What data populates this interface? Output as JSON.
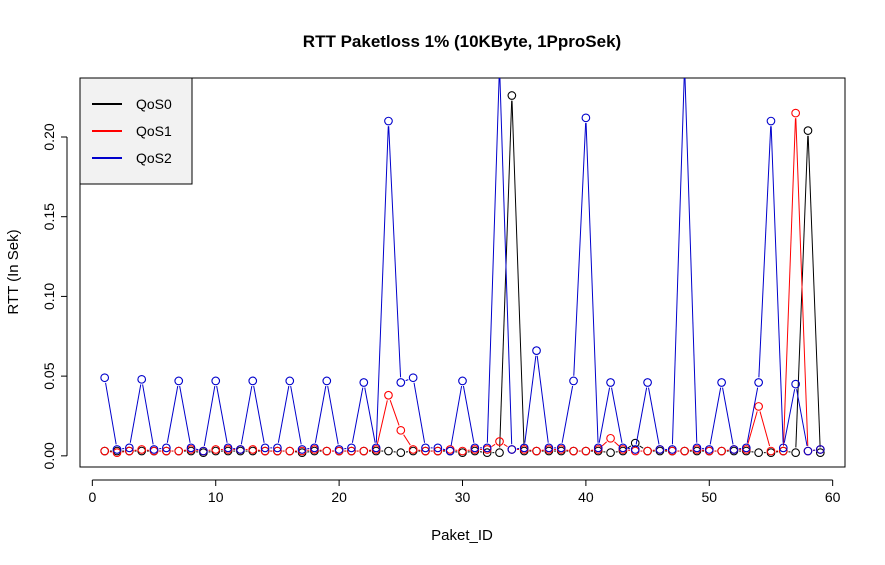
{
  "chart_data": {
    "type": "line",
    "title": "RTT Paketloss 1% (10KByte, 1PproSek)",
    "xlabel": "Paket_ID",
    "ylabel": "RTT (In Sek)",
    "xlim": [
      -1,
      61
    ],
    "ylim": [
      -0.007,
      0.237
    ],
    "x_ticks": [
      0,
      10,
      20,
      30,
      40,
      50,
      60
    ],
    "y_ticks": [
      0.0,
      0.05,
      0.1,
      0.15,
      0.2
    ],
    "y_tick_labels": [
      "0.00",
      "0.05",
      "0.10",
      "0.15",
      "0.20"
    ],
    "legend_position": "top-left",
    "grid": false,
    "series": [
      {
        "name": "QoS0",
        "color": "#000000",
        "x": [
          1,
          2,
          3,
          4,
          5,
          6,
          7,
          8,
          9,
          10,
          11,
          12,
          13,
          14,
          15,
          16,
          17,
          18,
          19,
          20,
          21,
          22,
          23,
          24,
          25,
          26,
          27,
          28,
          29,
          30,
          31,
          32,
          33,
          34,
          35,
          36,
          37,
          38,
          39,
          40,
          41,
          42,
          43,
          44,
          45,
          46,
          47,
          48,
          49,
          50,
          51,
          52,
          53,
          54,
          55,
          56,
          57,
          58,
          59
        ],
        "values": [
          0.003,
          0.003,
          0.003,
          0.003,
          0.003,
          0.003,
          0.003,
          0.003,
          0.002,
          0.003,
          0.003,
          0.003,
          0.003,
          0.003,
          0.003,
          0.003,
          0.002,
          0.003,
          0.003,
          0.003,
          0.003,
          0.003,
          0.003,
          0.003,
          0.002,
          0.003,
          0.003,
          0.003,
          0.003,
          0.002,
          0.003,
          0.002,
          0.002,
          0.226,
          0.003,
          0.003,
          0.003,
          0.003,
          0.003,
          0.003,
          0.003,
          0.002,
          0.003,
          0.008,
          0.003,
          0.003,
          0.003,
          0.003,
          0.003,
          0.003,
          0.003,
          0.003,
          0.003,
          0.002,
          0.002,
          0.003,
          0.002,
          0.204,
          0.002
        ]
      },
      {
        "name": "QoS1",
        "color": "#ff0000",
        "x": [
          1,
          2,
          3,
          4,
          5,
          6,
          7,
          8,
          9,
          10,
          11,
          12,
          13,
          14,
          15,
          16,
          17,
          18,
          19,
          20,
          21,
          22,
          23,
          24,
          25,
          26,
          27,
          28,
          29,
          30,
          31,
          32,
          33,
          34,
          35,
          36,
          37,
          38,
          39,
          40,
          41,
          42,
          43,
          44,
          45,
          46,
          47,
          48,
          49,
          50,
          51,
          52,
          53,
          54,
          55,
          56,
          57,
          58,
          59
        ],
        "values": [
          0.003,
          0.002,
          0.003,
          0.004,
          0.003,
          0.003,
          0.003,
          0.004,
          0.003,
          0.004,
          0.004,
          0.004,
          0.004,
          0.003,
          0.003,
          0.003,
          0.003,
          0.004,
          0.003,
          0.003,
          0.003,
          0.003,
          0.004,
          0.038,
          0.016,
          0.004,
          0.003,
          0.003,
          0.004,
          0.003,
          0.004,
          0.004,
          0.009,
          0.004,
          0.004,
          0.003,
          0.004,
          0.004,
          0.003,
          0.003,
          0.004,
          0.011,
          0.004,
          0.003,
          0.003,
          0.004,
          0.003,
          0.003,
          0.004,
          0.003,
          0.003,
          0.004,
          0.004,
          0.031,
          0.003,
          0.003,
          0.215,
          0.003,
          0.004
        ]
      },
      {
        "name": "QoS2",
        "color": "#0000cc",
        "x": [
          1,
          2,
          3,
          4,
          5,
          6,
          7,
          8,
          9,
          10,
          11,
          12,
          13,
          14,
          15,
          16,
          17,
          18,
          19,
          20,
          21,
          22,
          23,
          24,
          25,
          26,
          27,
          28,
          29,
          30,
          31,
          32,
          33,
          34,
          35,
          36,
          37,
          38,
          39,
          40,
          41,
          42,
          43,
          44,
          45,
          46,
          47,
          48,
          49,
          50,
          51,
          52,
          53,
          54,
          55,
          56,
          57,
          58,
          59
        ],
        "values": [
          0.049,
          0.004,
          0.005,
          0.048,
          0.004,
          0.005,
          0.047,
          0.005,
          0.003,
          0.047,
          0.005,
          0.004,
          0.047,
          0.005,
          0.005,
          0.047,
          0.004,
          0.005,
          0.047,
          0.004,
          0.005,
          0.046,
          0.005,
          0.21,
          0.046,
          0.049,
          0.005,
          0.005,
          0.003,
          0.047,
          0.005,
          0.005,
          0.245,
          0.004,
          0.005,
          0.066,
          0.005,
          0.005,
          0.047,
          0.212,
          0.005,
          0.046,
          0.005,
          0.004,
          0.046,
          0.004,
          0.004,
          0.245,
          0.005,
          0.004,
          0.046,
          0.004,
          0.005,
          0.046,
          0.21,
          0.005,
          0.045,
          0.003,
          0.004
        ]
      }
    ]
  }
}
